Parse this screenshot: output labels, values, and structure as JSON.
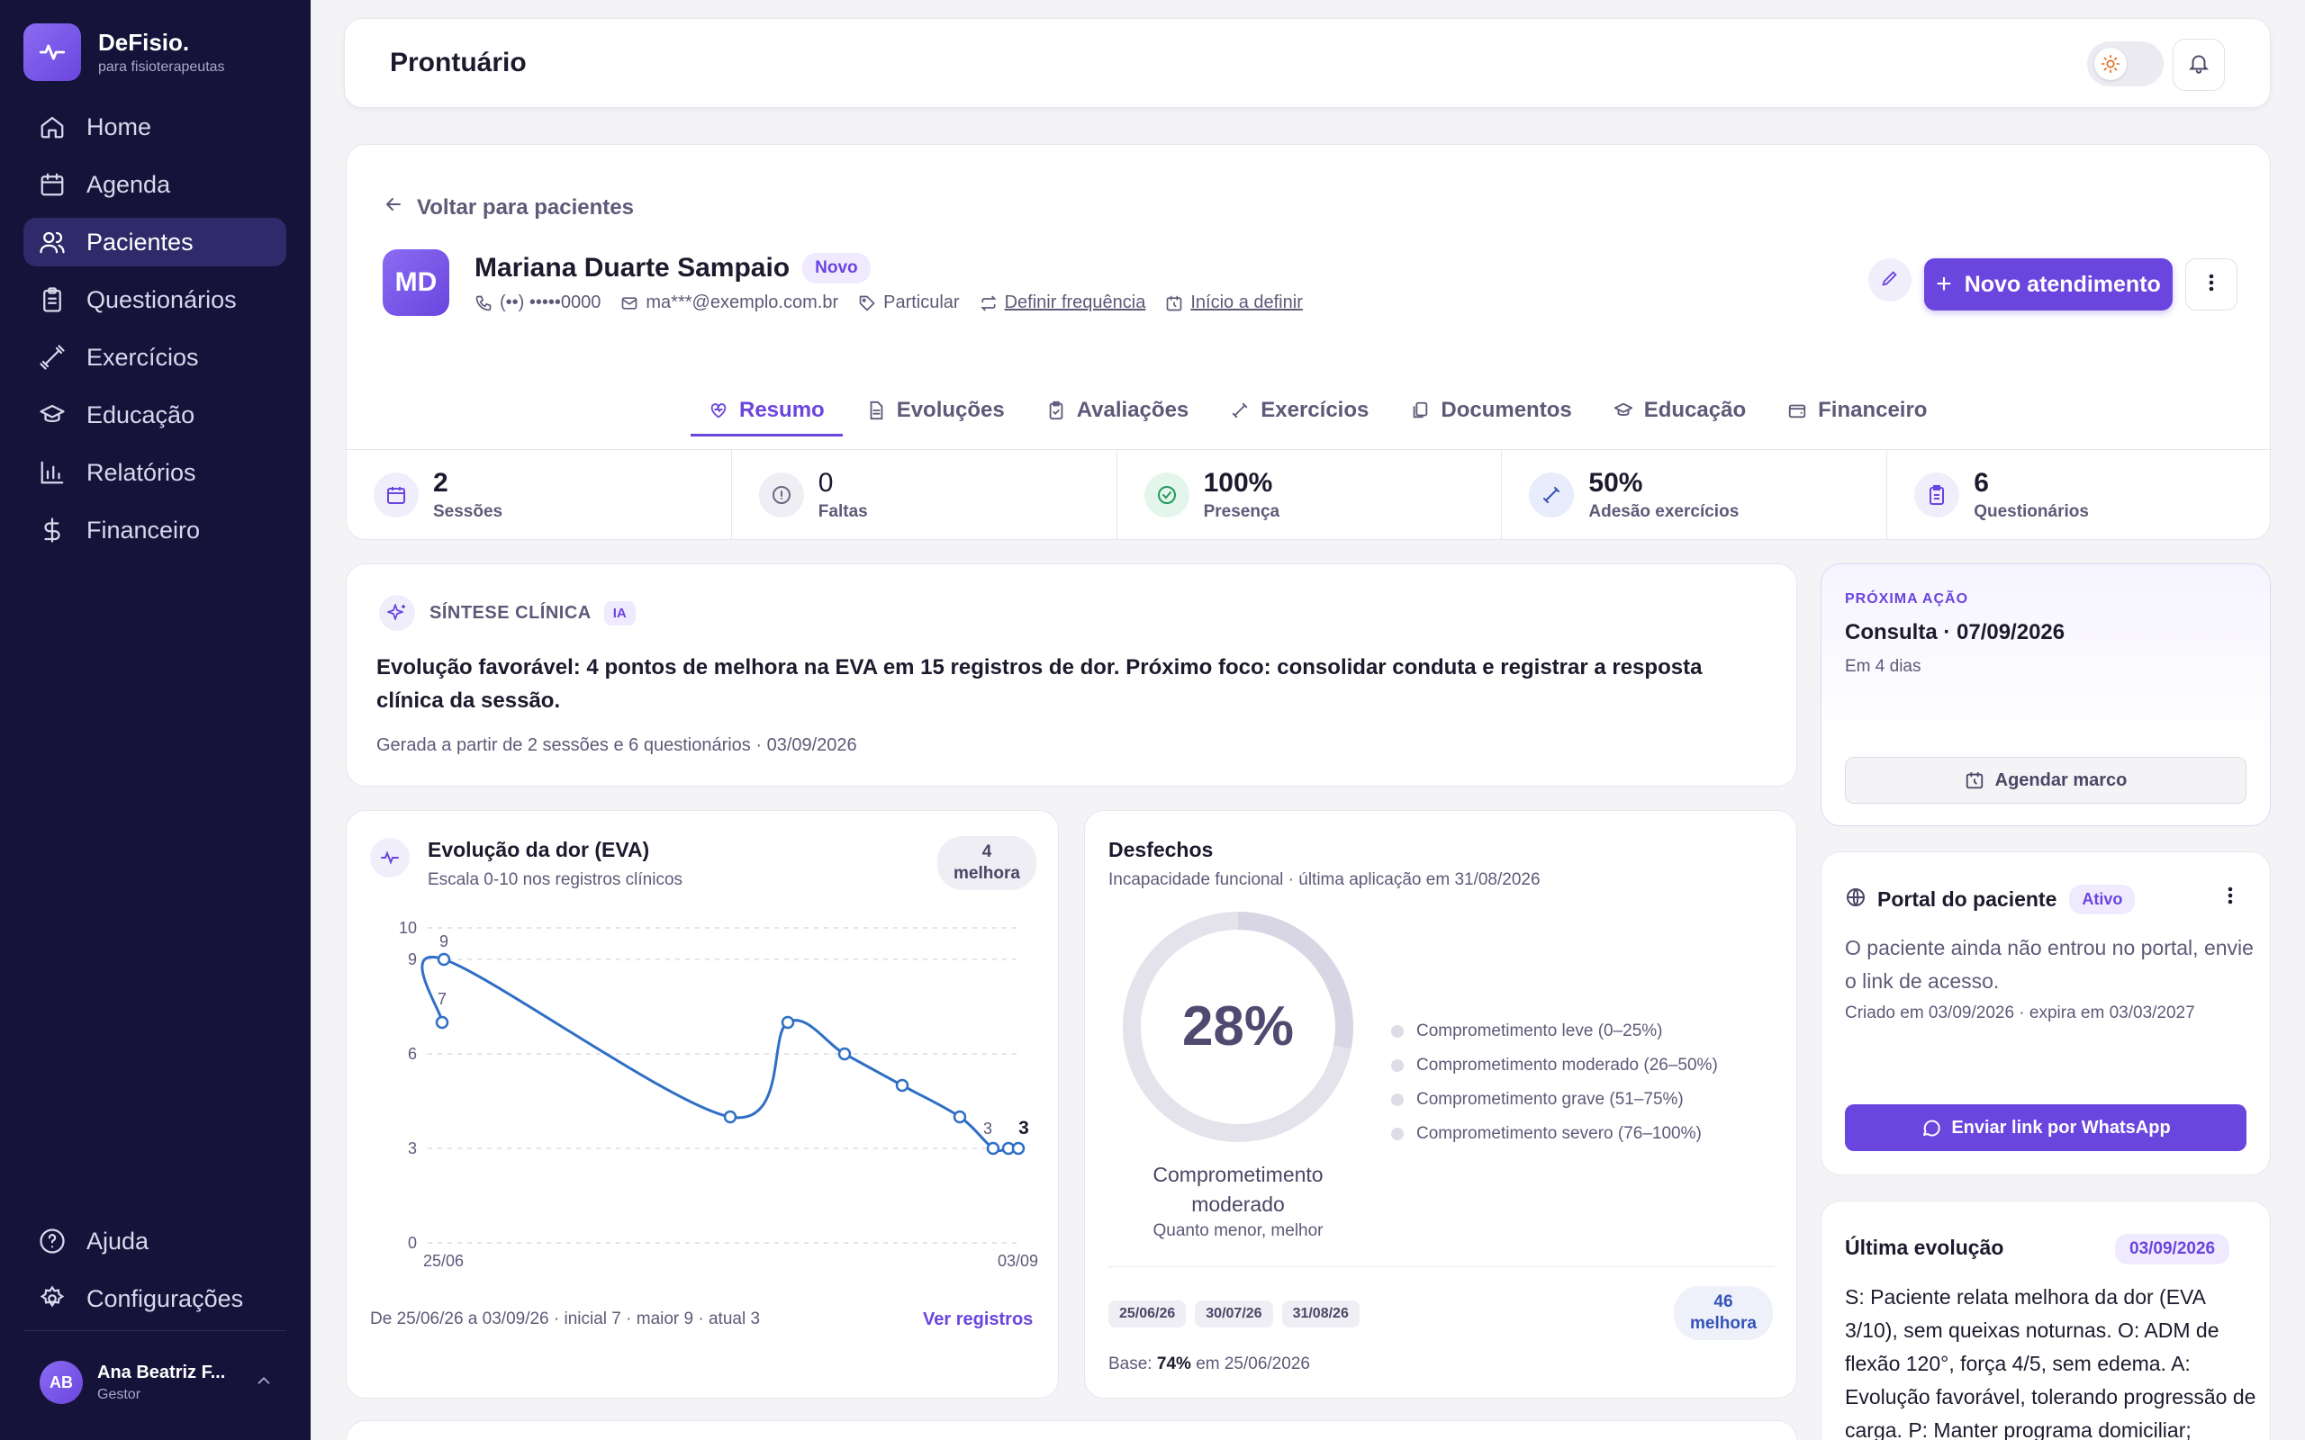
{
  "brand": {
    "name": "DeFisio.",
    "tagline": "para fisioterapeutas"
  },
  "nav": {
    "items": [
      {
        "label": "Home",
        "icon": "home-icon",
        "active": false
      },
      {
        "label": "Agenda",
        "icon": "calendar-icon",
        "active": false
      },
      {
        "label": "Pacientes",
        "icon": "users-icon",
        "active": true
      },
      {
        "label": "Questionários",
        "icon": "clipboard-icon",
        "active": false
      },
      {
        "label": "Exercícios",
        "icon": "dumbbell-icon",
        "active": false
      },
      {
        "label": "Educação",
        "icon": "graduation-icon",
        "active": false
      },
      {
        "label": "Relatórios",
        "icon": "bar-chart-icon",
        "active": false
      },
      {
        "label": "Financeiro",
        "icon": "dollar-icon",
        "active": false
      }
    ],
    "bottom": [
      {
        "label": "Ajuda",
        "icon": "help-icon"
      },
      {
        "label": "Configurações",
        "icon": "gear-icon"
      }
    ]
  },
  "user": {
    "initials": "AB",
    "name": "Ana Beatriz F...",
    "role": "Gestor"
  },
  "header": {
    "title": "Prontuário"
  },
  "patient": {
    "back_label": "Voltar para pacientes",
    "initials": "MD",
    "name": "Mariana Duarte Sampaio",
    "badge": "Novo",
    "phone": "(••) •••••0000",
    "email": "ma***@exemplo.com.br",
    "plan": "Particular",
    "frequency": "Definir frequência",
    "start": "Início a definir",
    "primary_action": "Novo atendimento"
  },
  "tabs": [
    {
      "label": "Resumo",
      "active": true
    },
    {
      "label": "Evoluções",
      "active": false
    },
    {
      "label": "Avaliações",
      "active": false
    },
    {
      "label": "Exercícios",
      "active": false
    },
    {
      "label": "Documentos",
      "active": false
    },
    {
      "label": "Educação",
      "active": false
    },
    {
      "label": "Financeiro",
      "active": false
    }
  ],
  "stats": [
    {
      "value": "2",
      "label": "Sessões",
      "color": "#f1eefc"
    },
    {
      "value": "0",
      "label": "Faltas",
      "color": "#efeef4"
    },
    {
      "value": "100%",
      "label": "Presença",
      "color": "#e4f6ec"
    },
    {
      "value": "50%",
      "label": "Adesão exercícios",
      "color": "#e8ecfb"
    },
    {
      "value": "6",
      "label": "Questionários",
      "color": "#f1eefc"
    }
  ],
  "synthesis": {
    "title": "SÍNTESE CLÍNICA",
    "badge": "IA",
    "text": "Evolução favorável: 4 pontos de melhora na EVA em 15 registros de dor. Próximo foco: consolidar conduta e registrar a resposta clínica da sessão.",
    "footer": "Gerada a partir de 2 sessões e 6 questionários · 03/09/2026"
  },
  "next_action": {
    "label": "PRÓXIMA AÇÃO",
    "title": "Consulta · 07/09/2026",
    "subtitle": "Em 4 dias",
    "button": "Agendar marco"
  },
  "portal": {
    "title": "Portal do paciente",
    "badge": "Ativo",
    "text": "O paciente ainda não entrou no portal, envie o link de acesso.",
    "meta": "Criado em 03/09/2026 · expira em 03/03/2027",
    "button": "Enviar link por WhatsApp"
  },
  "last_evolution": {
    "title": "Última evolução",
    "date": "03/09/2026",
    "text": "S: Paciente relata melhora da dor (EVA 3/10), sem queixas noturnas. O: ADM de flexão 120°, força 4/5, sem edema. A: Evolução favorável, tolerando progressão de carga. P: Manter programa domiciliar;"
  },
  "eva": {
    "title": "Evolução da dor (EVA)",
    "subtitle": "Escala 0-10 nos registros clínicos",
    "pill_value": "4",
    "pill_label": "melhora",
    "footer": "De 25/06/26 a 03/09/26 · inicial 7 · maior 9 · atual 3",
    "link": "Ver registros"
  },
  "chart_data": {
    "type": "line",
    "title": "Evolução da dor (EVA)",
    "ylim": [
      0,
      10
    ],
    "yticks": [
      0,
      3,
      6,
      9,
      10
    ],
    "xtick_labels": [
      "25/06",
      "03/09"
    ],
    "series": [
      {
        "values": [
          7,
          9,
          4,
          7,
          6,
          5,
          4,
          3,
          3,
          3
        ]
      }
    ],
    "point_labels": [
      "7",
      "9",
      "",
      "",
      "",
      "",
      "",
      "3",
      "",
      "3"
    ]
  },
  "outcomes": {
    "title": "Desfechos",
    "subtitle": "Incapacidade funcional · última aplicação em 31/08/2026",
    "value": "28%",
    "fraction": 0.28,
    "label": "Comprometimento moderado",
    "note": "Quanto menor, melhor",
    "legend": [
      "Comprometimento leve (0–25%)",
      "Comprometimento moderado (26–50%)",
      "Comprometimento grave (51–75%)",
      "Comprometimento severo (76–100%)"
    ],
    "dates": [
      "25/06/26",
      "30/07/26",
      "31/08/26"
    ],
    "pill_value": "46",
    "pill_label": "melhora",
    "base_prefix": "Base:",
    "base_value": "74%",
    "base_suffix": "em 25/06/2026"
  },
  "colors": {
    "accent": "#6a45de",
    "sidebar": "#151339",
    "chart_line": "#2f6fc6"
  }
}
